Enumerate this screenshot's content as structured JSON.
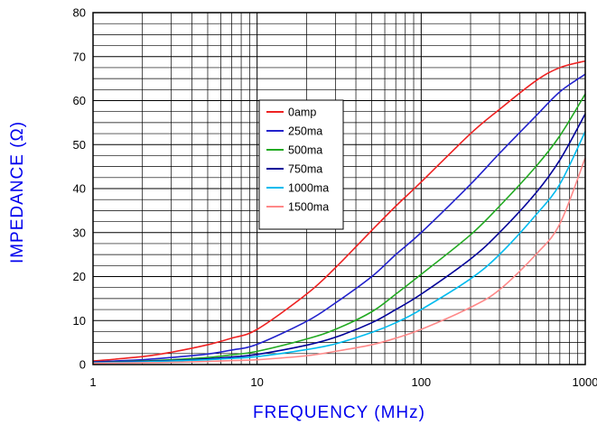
{
  "chart_data": {
    "type": "line",
    "xlabel": "FREQUENCY (MHz)",
    "ylabel": "IMPEDANCE (Ω)",
    "xscale": "log",
    "xlim": [
      1,
      1000
    ],
    "ylim": [
      0,
      80
    ],
    "x_ticks": [
      "1",
      "10",
      "100",
      "1000"
    ],
    "y_ticks": [
      "0",
      "10",
      "20",
      "30",
      "40",
      "50",
      "60",
      "70",
      "80"
    ],
    "grid": true,
    "legend_position": "upper-center",
    "x": [
      1,
      2,
      3,
      5,
      7,
      10,
      20,
      30,
      50,
      70,
      100,
      200,
      300,
      500,
      700,
      1000
    ],
    "series": [
      {
        "name": "0amp",
        "color": "#ee2222",
        "values": [
          0.8,
          1.8,
          2.8,
          4.5,
          6,
          8,
          16,
          22,
          30.5,
          36,
          41.5,
          52.5,
          58,
          64.5,
          67.5,
          69
        ]
      },
      {
        "name": "250ma",
        "color": "#2222cc",
        "values": [
          0.6,
          1.1,
          1.6,
          2.4,
          3.3,
          4.6,
          9.8,
          14,
          20,
          25,
          30,
          41,
          48,
          56.5,
          62,
          66
        ]
      },
      {
        "name": "500ma",
        "color": "#22aa22",
        "values": [
          0.5,
          0.8,
          1.1,
          1.6,
          2.2,
          3,
          5.8,
          8,
          12,
          16,
          20.5,
          29.5,
          36,
          45,
          52,
          61.5
        ]
      },
      {
        "name": "750ma",
        "color": "#000099",
        "values": [
          0.5,
          0.7,
          0.9,
          1.3,
          1.7,
          2.3,
          4.4,
          6.2,
          9.5,
          12.5,
          16,
          24,
          30,
          39,
          46.5,
          57
        ]
      },
      {
        "name": "1000ma",
        "color": "#00bbee",
        "values": [
          0.4,
          0.6,
          0.8,
          1.1,
          1.4,
          1.8,
          3.4,
          4.7,
          7.3,
          9.5,
          12.5,
          19.5,
          25,
          34,
          41,
          53
        ]
      },
      {
        "name": "1500ma",
        "color": "#ff8888",
        "values": [
          0.3,
          0.4,
          0.5,
          0.7,
          0.9,
          1.1,
          2,
          3,
          4.5,
          6,
          8,
          13,
          17,
          25,
          32,
          47
        ]
      }
    ]
  }
}
